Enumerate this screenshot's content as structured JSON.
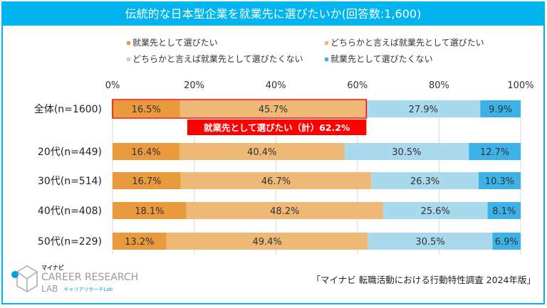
{
  "title": "伝統的な日本型企業を就業先に選びたいか(回答数:1,600)",
  "colors": {
    "frame": "#00b4ee",
    "c1": "#e99a3c",
    "c2": "#eeb877",
    "c3": "#a9d9ec",
    "c4": "#3db2e8",
    "highlight": "#ff0000"
  },
  "chart_data": {
    "type": "bar",
    "orientation": "horizontal-stacked-100",
    "title": "伝統的な日本型企業を就業先に選びたいか(回答数:1,600)",
    "categories": [
      "全体(n=1600)",
      "20代(n=449)",
      "30代(n=514)",
      "40代(n=408)",
      "50代(n=229)"
    ],
    "series": [
      {
        "name": "就業先として選びたい",
        "values": [
          16.5,
          16.4,
          16.7,
          18.1,
          13.2
        ]
      },
      {
        "name": "どちらかと言えば就業先として選びたい",
        "values": [
          45.7,
          40.4,
          46.7,
          48.2,
          49.4
        ]
      },
      {
        "name": "どちらかと言えば就業先として選びたくない",
        "values": [
          27.9,
          30.5,
          26.3,
          25.6,
          30.5
        ]
      },
      {
        "name": "就業先として選びたくない",
        "values": [
          9.9,
          12.7,
          10.3,
          8.1,
          6.9
        ]
      }
    ],
    "xticks": [
      "0%",
      "20%",
      "40%",
      "60%",
      "80%",
      "100%"
    ],
    "xlim": [
      0,
      100
    ],
    "legend_position": "top",
    "annotation": "就業先として選びたい（計）62.2%"
  },
  "source": "「マイナビ 転職活動における行動特性調査 2024年版」",
  "logo": {
    "top": "マイナビ",
    "main": "CAREER RESEARCH",
    "lab": "LAB",
    "sub": "キャリアリサーチLab"
  }
}
